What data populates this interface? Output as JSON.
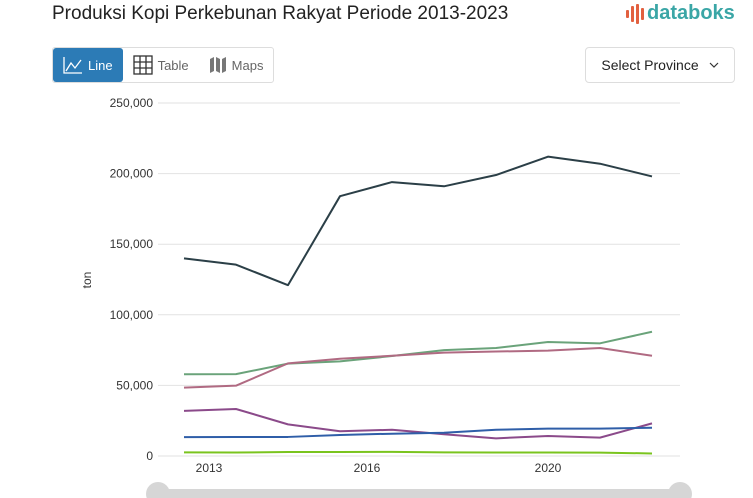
{
  "header": {
    "title": "Produksi Kopi Perkebunan Rakyat Periode 2013-2023",
    "logo_text": "databoks"
  },
  "tabs": [
    {
      "label": "Line",
      "icon": "line-chart-icon",
      "active": true
    },
    {
      "label": "Table",
      "icon": "table-grid-icon"
    },
    {
      "label": "Maps",
      "icon": "map-icon"
    }
  ],
  "province_select": {
    "label": "Select Province",
    "icon": "chevron-down-icon"
  },
  "chart_data": {
    "type": "line",
    "title": "",
    "ylabel": "ton",
    "ylim": [
      0,
      250000
    ],
    "yticks": [
      0,
      50000,
      100000,
      150000,
      200000,
      250000
    ],
    "ytick_labels": [
      "0",
      "50,000",
      "100,000",
      "150,000",
      "200,000",
      "250,000"
    ],
    "xticks": [
      2013,
      2016,
      2020
    ],
    "x": [
      2013,
      2014,
      2015,
      2016,
      2017,
      2018,
      2019,
      2020,
      2021,
      2022
    ],
    "grid": true,
    "series": [
      {
        "color": "#2b3f47",
        "values": [
          140000,
          135500,
          121000,
          184000,
          194000,
          191000,
          199000,
          212000,
          207000,
          198000
        ]
      },
      {
        "color": "#6aa37a",
        "values": [
          57900,
          58000,
          65400,
          67000,
          70800,
          75000,
          76500,
          80700,
          79800,
          88000
        ]
      },
      {
        "color": "#b06a82",
        "values": [
          48400,
          49800,
          65600,
          68900,
          71000,
          73200,
          74000,
          74600,
          76500,
          71000
        ]
      },
      {
        "color": "#8b4a8a",
        "values": [
          32000,
          33300,
          22400,
          17500,
          18600,
          15400,
          12500,
          14200,
          13000,
          23100
        ]
      },
      {
        "color": "#2f5ea8",
        "values": [
          13400,
          13500,
          13500,
          14900,
          15800,
          16500,
          18600,
          19400,
          19400,
          20000
        ]
      },
      {
        "color": "#7ac41e",
        "values": [
          2600,
          2500,
          2800,
          2800,
          2900,
          2600,
          2500,
          2500,
          2400,
          1800
        ]
      }
    ]
  }
}
